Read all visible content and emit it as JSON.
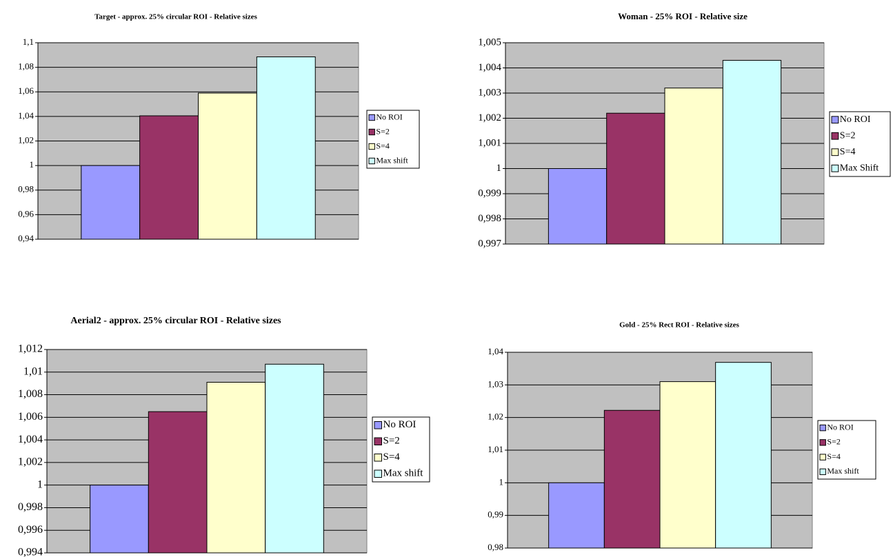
{
  "chart_data": [
    {
      "type": "bar",
      "title": "Target - approx. 25% circular ROI - Relative sizes",
      "series": [
        {
          "name": "No ROI",
          "color": "#9999ff",
          "values": [
            1
          ]
        },
        {
          "name": "S=2",
          "color": "#993366",
          "values": [
            1.0405
          ]
        },
        {
          "name": "S=4",
          "color": "#ffffcc",
          "values": [
            1.059
          ]
        },
        {
          "name": "Max shift",
          "color": "#ccffff",
          "values": [
            1.0885
          ]
        }
      ],
      "ylim": [
        0.94,
        1.1
      ],
      "yticks": [
        {
          "value": 0.94,
          "label": "0,94"
        },
        {
          "value": 0.96,
          "label": "0,96"
        },
        {
          "value": 0.98,
          "label": "0,98"
        },
        1,
        {
          "value": 1.02,
          "label": "1,02"
        },
        {
          "value": 1.04,
          "label": "1,04"
        },
        {
          "value": 1.06,
          "label": "1,06"
        },
        {
          "value": 1.08,
          "label": "1,08"
        },
        {
          "value": 1.1,
          "label": "1,1"
        }
      ],
      "grid": true,
      "legend": "right"
    },
    {
      "type": "bar",
      "title": "Woman - 25% ROI - Relative size",
      "series": [
        {
          "name": "No ROI",
          "color": "#9999ff",
          "values": [
            1
          ]
        },
        {
          "name": "S=2",
          "color": "#993366",
          "values": [
            1.0022
          ]
        },
        {
          "name": "S=4",
          "color": "#ffffcc",
          "values": [
            1.0032
          ]
        },
        {
          "name": "Max Shift",
          "color": "#ccffff",
          "values": [
            1.0043
          ]
        }
      ],
      "ylim": [
        0.997,
        1.005
      ],
      "yticks": [
        {
          "value": 0.997,
          "label": "0,997"
        },
        {
          "value": 0.998,
          "label": "0,998"
        },
        {
          "value": 0.999,
          "label": "0,999"
        },
        1,
        {
          "value": 1.001,
          "label": "1,001"
        },
        {
          "value": 1.002,
          "label": "1,002"
        },
        {
          "value": 1.003,
          "label": "1,003"
        },
        {
          "value": 1.004,
          "label": "1,004"
        },
        {
          "value": 1.005,
          "label": "1,005"
        }
      ],
      "grid": true,
      "legend": "right"
    },
    {
      "type": "bar",
      "title": "Aerial2 - approx. 25% circular ROI - Relative sizes",
      "series": [
        {
          "name": "No ROI",
          "color": "#9999ff",
          "values": [
            1
          ]
        },
        {
          "name": "S=2",
          "color": "#993366",
          "values": [
            1.0065
          ]
        },
        {
          "name": "S=4",
          "color": "#ffffcc",
          "values": [
            1.0091
          ]
        },
        {
          "name": "Max shift",
          "color": "#ccffff",
          "values": [
            1.0107
          ]
        }
      ],
      "ylim": [
        0.994,
        1.012
      ],
      "yticks": [
        {
          "value": 0.994,
          "label": "0,994"
        },
        {
          "value": 0.996,
          "label": "0,996"
        },
        {
          "value": 0.998,
          "label": "0,998"
        },
        1,
        {
          "value": 1.002,
          "label": "1,002"
        },
        {
          "value": 1.004,
          "label": "1,004"
        },
        {
          "value": 1.006,
          "label": "1,006"
        },
        {
          "value": 1.008,
          "label": "1,008"
        },
        {
          "value": 1.01,
          "label": "1,01"
        },
        {
          "value": 1.012,
          "label": "1,012"
        }
      ],
      "grid": true,
      "legend": "right"
    },
    {
      "type": "bar",
      "title": "Gold - 25% Rect ROI - Relative sizes",
      "series": [
        {
          "name": "No ROI",
          "color": "#9999ff",
          "values": [
            1
          ]
        },
        {
          "name": "S=2",
          "color": "#993366",
          "values": [
            1.0222
          ]
        },
        {
          "name": "S=4",
          "color": "#ffffcc",
          "values": [
            1.031
          ]
        },
        {
          "name": "Max shift",
          "color": "#ccffff",
          "values": [
            1.0369
          ]
        }
      ],
      "ylim": [
        0.98,
        1.04
      ],
      "yticks": [
        {
          "value": 0.98,
          "label": "0,98"
        },
        {
          "value": 0.99,
          "label": "0,99"
        },
        1,
        {
          "value": 1.01,
          "label": "1,01"
        },
        {
          "value": 1.02,
          "label": "1,02"
        },
        {
          "value": 1.03,
          "label": "1,03"
        },
        {
          "value": 1.04,
          "label": "1,04"
        }
      ],
      "grid": true,
      "legend": "right"
    }
  ]
}
